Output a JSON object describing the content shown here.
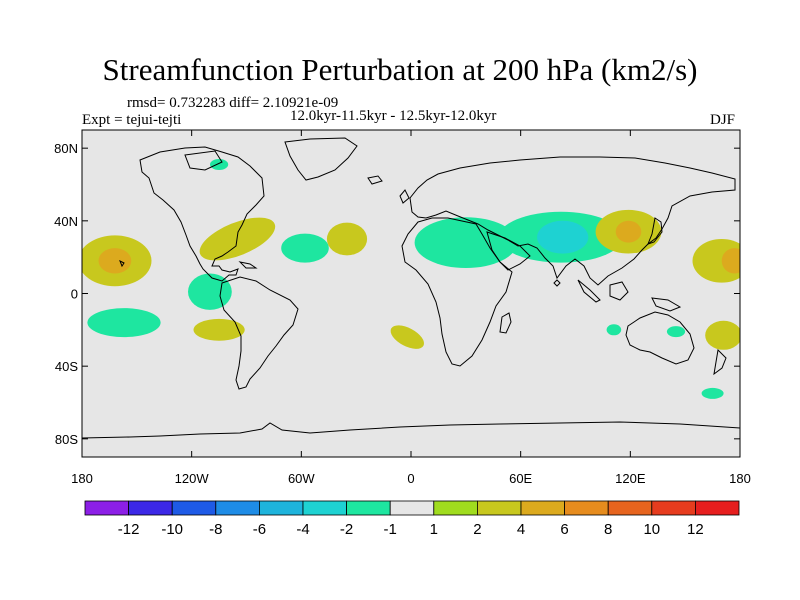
{
  "chart_data": {
    "type": "heatmap",
    "title": "Streamfunction Perturbation at 200 hPa (km2/s)",
    "stats_line": "rmsd= 0.732283 diff= 2.10921e-09",
    "period_line": "12.0kyr-11.5kyr - 12.5kyr-12.0kyr",
    "experiment": "Expt = tejui-tejti",
    "season": "DJF",
    "x_range": [
      -180,
      180
    ],
    "y_range": [
      -90,
      90
    ],
    "x_ticks": [
      {
        "value": -180,
        "label": "180"
      },
      {
        "value": -120,
        "label": "120W"
      },
      {
        "value": -60,
        "label": "60W"
      },
      {
        "value": 0,
        "label": "0"
      },
      {
        "value": 60,
        "label": "60E"
      },
      {
        "value": 120,
        "label": "120E"
      },
      {
        "value": 180,
        "label": "180"
      }
    ],
    "y_ticks": [
      {
        "value": 80,
        "label": "80N"
      },
      {
        "value": 40,
        "label": "40N"
      },
      {
        "value": 0,
        "label": "0"
      },
      {
        "value": -40,
        "label": "40S"
      },
      {
        "value": -80,
        "label": "80S"
      }
    ],
    "colorbar": {
      "colors": [
        "#8c1fe6",
        "#3c28e6",
        "#1e5ae6",
        "#1e8ce6",
        "#1eb4dc",
        "#1ed2d2",
        "#1ee6a0",
        "#e6e6e6",
        "#a0dc1e",
        "#c8c81e",
        "#dcaa1e",
        "#e68c1e",
        "#e6641e",
        "#e63c1e",
        "#e61e1e"
      ],
      "labels": [
        "-12",
        "-10",
        "-8",
        "-6",
        "-4",
        "-2",
        "-1",
        "1",
        "2",
        "4",
        "6",
        "8",
        "10",
        "12"
      ]
    },
    "anomalies": [
      {
        "lon": -162,
        "lat": 18,
        "rx": 20,
        "ry": 14,
        "level": "2"
      },
      {
        "lon": -162,
        "lat": 18,
        "rx": 9,
        "ry": 7,
        "level": "4"
      },
      {
        "lon": -157,
        "lat": -16,
        "rx": 20,
        "ry": 8,
        "level": "-1"
      },
      {
        "lon": -95,
        "lat": 30,
        "rx": 22,
        "ry": 9,
        "rotate": -22,
        "level": "2"
      },
      {
        "lon": -110,
        "lat": 1,
        "rx": 12,
        "ry": 10,
        "level": "-1"
      },
      {
        "lon": -105,
        "lat": -20,
        "rx": 14,
        "ry": 6,
        "level": "2"
      },
      {
        "lon": -58,
        "lat": 25,
        "rx": 13,
        "ry": 8,
        "level": "-1"
      },
      {
        "lon": -35,
        "lat": 30,
        "rx": 11,
        "ry": 9,
        "level": "2"
      },
      {
        "lon": -2,
        "lat": -24,
        "rx": 10,
        "ry": 5,
        "rotate": 28,
        "level": "2"
      },
      {
        "lon": 30,
        "lat": 28,
        "rx": 28,
        "ry": 14,
        "level": "-1"
      },
      {
        "lon": 82,
        "lat": 31,
        "rx": 34,
        "ry": 14,
        "level": "-1"
      },
      {
        "lon": 83,
        "lat": 31,
        "rx": 14,
        "ry": 9,
        "level": "-2"
      },
      {
        "lon": 119,
        "lat": 34,
        "rx": 18,
        "ry": 12,
        "level": "2"
      },
      {
        "lon": 119,
        "lat": 34,
        "rx": 7,
        "ry": 6,
        "level": "4"
      },
      {
        "lon": 170,
        "lat": 18,
        "rx": 16,
        "ry": 12,
        "level": "2"
      },
      {
        "lon": 177,
        "lat": 18,
        "rx": 7,
        "ry": 7,
        "level": "4"
      },
      {
        "lon": -105,
        "lat": 71,
        "rx": 5,
        "ry": 3,
        "level": "-1"
      },
      {
        "lon": 171,
        "lat": -23,
        "rx": 10,
        "ry": 8,
        "level": "2"
      },
      {
        "lon": 111,
        "lat": -20,
        "rx": 4,
        "ry": 3,
        "level": "-1"
      },
      {
        "lon": 145,
        "lat": -21,
        "rx": 5,
        "ry": 3,
        "level": "-1"
      },
      {
        "lon": 165,
        "lat": -55,
        "rx": 6,
        "ry": 3,
        "level": "-1"
      }
    ]
  },
  "ui": {
    "colors": {
      "ocean_bg": "#e6e6e6",
      "outline": "#000000"
    }
  }
}
